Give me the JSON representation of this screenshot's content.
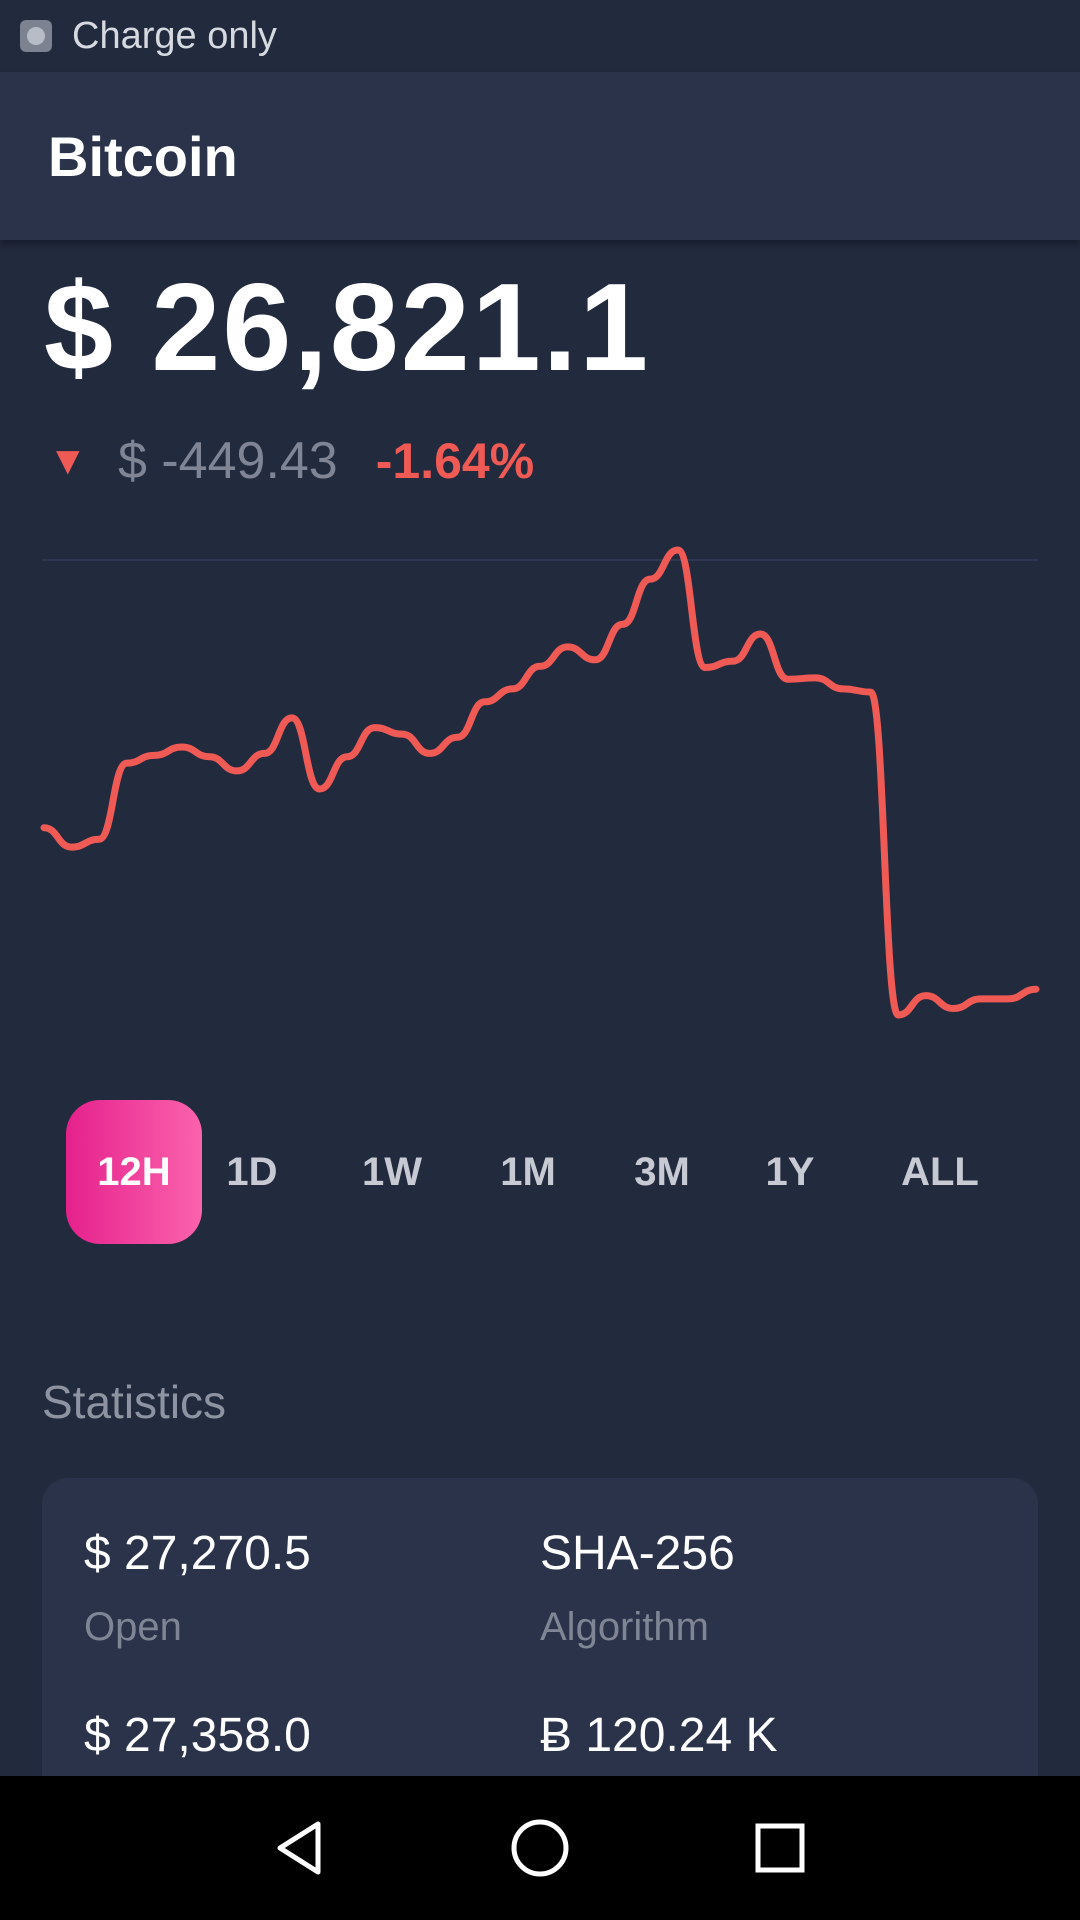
{
  "status_bar": {
    "text": "Charge only",
    "icon": "usb-notification-icon"
  },
  "header": {
    "title": "Bitcoin"
  },
  "price": {
    "current": "$ 26,821.1",
    "change_abs": "$ -449.43",
    "change_pct": "-1.64%",
    "direction": "down"
  },
  "colors": {
    "negative": "#ef5a55",
    "accent_start": "#e5218c",
    "accent_end": "#fb63ad",
    "background": "#222a3e",
    "card": "#2a3349"
  },
  "chart_data": {
    "type": "line",
    "title": "",
    "xlabel": "",
    "ylabel": "",
    "series": [
      {
        "values": [
          26880,
          26850,
          26862,
          26980,
          26992,
          27005,
          26990,
          26968,
          26995,
          27050,
          26940,
          26990,
          27035,
          27025,
          26995,
          27020,
          27075,
          27095,
          27130,
          27160,
          27140,
          27195,
          27265,
          27310,
          27128,
          27138,
          27180,
          27110,
          27112,
          27095,
          27090,
          26590,
          26620,
          26600,
          26615,
          26615,
          26630
        ]
      }
    ],
    "grid": false,
    "legend": "none"
  },
  "ranges": {
    "selected": "12H",
    "options": [
      "12H",
      "1D",
      "1W",
      "1M",
      "3M",
      "1Y",
      "ALL"
    ]
  },
  "statistics": {
    "title": "Statistics",
    "items": [
      {
        "value": "$ 27,270.5",
        "label": "Open"
      },
      {
        "value": "SHA-256",
        "label": "Algorithm"
      },
      {
        "value": "$ 27,358.0",
        "label": ""
      },
      {
        "value": "Ƀ 120.24 K",
        "label": ""
      }
    ]
  },
  "nav": {
    "back_icon": "back-triangle-icon",
    "home_icon": "home-circle-icon",
    "recents_icon": "recents-square-icon"
  }
}
